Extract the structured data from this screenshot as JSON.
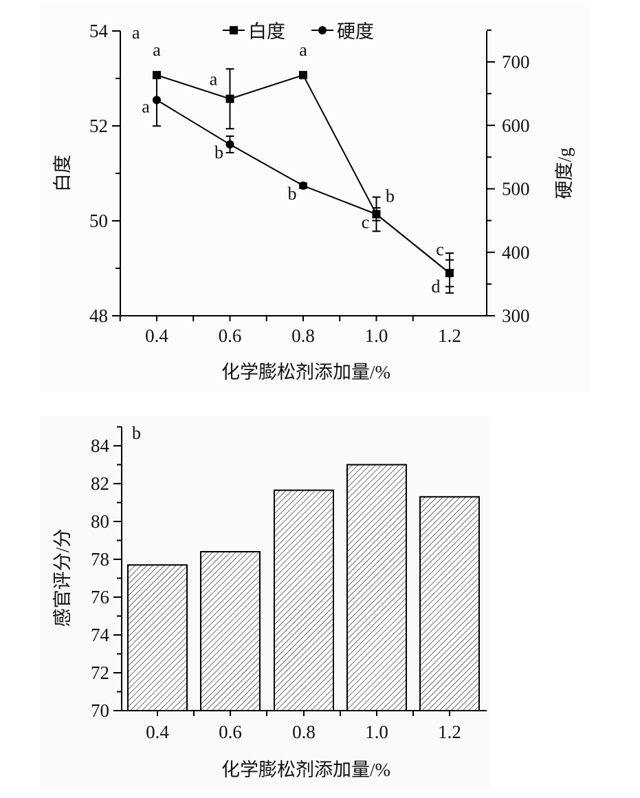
{
  "chart_data": [
    {
      "type": "line",
      "panel_label": "a",
      "xlabel": "化学膨松剂添加量/%",
      "ylabel": "白度",
      "y2label": "硬度/g",
      "x": [
        0.4,
        0.6,
        0.8,
        1.0,
        1.2
      ],
      "x_tick_labels": [
        "0.4",
        "0.6",
        "0.8",
        "1.0",
        "1.2"
      ],
      "ylim": [
        48,
        54
      ],
      "y_ticks": [
        "48",
        "50",
        "52",
        "54"
      ],
      "y2lim": [
        300,
        750
      ],
      "y2_ticks": [
        "300",
        "400",
        "500",
        "600",
        "700"
      ],
      "legend_position": "top",
      "series": [
        {
          "name": "白度",
          "axis": "left",
          "marker": "square",
          "values": [
            53.07,
            52.57,
            53.07,
            50.14,
            48.9
          ],
          "errors": [
            0,
            0.63,
            0,
            0.36,
            0.42
          ],
          "labels": [
            "a",
            "a",
            "a",
            "b",
            "c"
          ]
        },
        {
          "name": "硬度",
          "axis": "right",
          "marker": "circle",
          "values": [
            640,
            570,
            505,
            460,
            367
          ],
          "errors": [
            41,
            13,
            4,
            10,
            21
          ],
          "labels": [
            "a",
            "b",
            "b",
            "c",
            "d"
          ]
        }
      ]
    },
    {
      "type": "bar",
      "panel_label": "b",
      "xlabel": "化学膨松剂添加量/%",
      "ylabel": "感官评分/分",
      "categories": [
        "0.4",
        "0.6",
        "0.8",
        "1.0",
        "1.2"
      ],
      "values": [
        77.7,
        78.4,
        81.65,
        83.0,
        81.3
      ],
      "ylim": [
        70,
        85
      ],
      "y_ticks": [
        "70",
        "72",
        "74",
        "76",
        "78",
        "80",
        "82",
        "84"
      ],
      "fill": "diagonal hatch"
    }
  ]
}
